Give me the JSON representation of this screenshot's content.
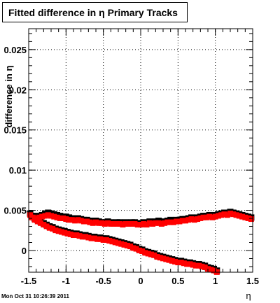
{
  "title": "Fitted difference in  η  Primary Tracks",
  "footer": "Mon Oct 31 10:26:39 2011",
  "chart_data": {
    "type": "scatter",
    "title": "Fitted difference in  η  Primary Tracks",
    "xlabel": "η",
    "ylabel": "difference in η",
    "xlim": [
      -1.5,
      1.5
    ],
    "ylim": [
      -0.0027,
      0.0276
    ],
    "grid": true,
    "x_ticks": [
      "-1.5",
      "-1",
      "-0.5",
      "0",
      "0.5",
      "1",
      "1.5"
    ],
    "y_ticks": [
      "0",
      "0.005",
      "0.01",
      "0.015",
      "0.02",
      "0.025"
    ],
    "colors": {
      "series_black": "#000000",
      "series_red": "#ff0000"
    },
    "series": [
      {
        "color": "#000000",
        "x": [
          -1.48,
          -1.44,
          -1.4,
          -1.36,
          -1.32,
          -1.28,
          -1.24,
          -1.2,
          -1.16,
          -1.12,
          -1.08,
          -1.04,
          -1.0,
          -0.96,
          -0.92,
          -0.88,
          -0.84,
          -0.8,
          -0.76,
          -0.72,
          -0.68,
          -0.64,
          -0.6,
          -0.56,
          -0.52,
          -0.48,
          -0.44,
          -0.4,
          -0.36,
          -0.32,
          -0.28,
          -0.24,
          -0.2,
          -0.16,
          -0.12,
          -0.08,
          -0.04,
          0.0,
          0.04,
          0.08,
          0.12,
          0.16,
          0.2,
          0.24,
          0.28,
          0.32,
          0.36,
          0.4,
          0.44,
          0.48,
          0.52,
          0.56,
          0.6,
          0.64,
          0.68,
          0.72,
          0.76,
          0.8,
          0.84,
          0.88,
          0.92,
          0.96,
          1.0,
          1.04,
          1.08,
          1.12,
          1.16,
          1.2,
          1.24,
          1.28,
          1.32,
          1.36,
          1.4,
          1.44,
          1.48
        ],
        "y": [
          0.0046,
          0.0043,
          0.0041,
          0.0043,
          0.0044,
          0.0046,
          0.0047,
          0.0046,
          0.0045,
          0.0044,
          0.0043,
          0.0042,
          0.0042,
          0.0041,
          0.004,
          0.0039,
          0.004,
          0.0039,
          0.0038,
          0.0038,
          0.0037,
          0.0036,
          0.0037,
          0.0036,
          0.0035,
          0.0035,
          0.0036,
          0.0035,
          0.0034,
          0.0035,
          0.0035,
          0.0034,
          0.0035,
          0.0034,
          0.0035,
          0.0035,
          0.0034,
          0.0033,
          0.0035,
          0.0034,
          0.0036,
          0.0035,
          0.0036,
          0.0037,
          0.0035,
          0.0036,
          0.0037,
          0.0038,
          0.0037,
          0.0038,
          0.0038,
          0.0039,
          0.0039,
          0.004,
          0.0041,
          0.004,
          0.0041,
          0.0042,
          0.0043,
          0.0043,
          0.0044,
          0.0043,
          0.0044,
          0.0045,
          0.0046,
          0.0047,
          0.0046,
          0.0048,
          0.0047,
          0.0046,
          0.0045,
          0.0044,
          0.0043,
          0.0042,
          0.0041
        ]
      },
      {
        "color": "#000000",
        "x": [
          -1.46,
          -1.42,
          -1.38,
          -1.34,
          -1.3,
          -1.26,
          -1.22,
          -1.18,
          -1.14,
          -1.1,
          -1.06,
          -1.02,
          -0.98,
          -0.94,
          -0.9,
          -0.86,
          -0.82,
          -0.78,
          -0.74,
          -0.7,
          -0.66,
          -0.62,
          -0.58,
          -0.54,
          -0.5,
          -0.46,
          -0.42,
          -0.38,
          -0.34,
          -0.3,
          -0.26,
          -0.22,
          -0.18,
          -0.14,
          -0.1,
          -0.06,
          -0.02,
          0.02,
          0.06,
          0.1,
          0.14,
          0.18,
          0.22,
          0.26,
          0.3,
          0.34,
          0.38,
          0.42,
          0.46,
          0.5,
          0.54,
          0.58,
          0.62,
          0.66,
          0.7,
          0.74,
          0.78,
          0.82,
          0.86,
          0.9,
          0.94,
          0.98,
          1.02
        ],
        "y": [
          0.0043,
          0.004,
          0.0038,
          0.0036,
          0.0034,
          0.0032,
          0.003,
          0.0029,
          0.0027,
          0.0026,
          0.0025,
          0.0024,
          0.0023,
          0.0022,
          0.0021,
          0.0021,
          0.002,
          0.0019,
          0.0019,
          0.0018,
          0.0017,
          0.0017,
          0.0016,
          0.0016,
          0.0015,
          0.0015,
          0.0014,
          0.0013,
          0.0012,
          0.0011,
          0.001,
          0.0009,
          0.0008,
          0.0007,
          0.0005,
          0.0004,
          0.0002,
          0.0001,
          -0.0001,
          -0.0002,
          -0.0003,
          -0.0004,
          -0.0006,
          -0.0007,
          -0.0008,
          -0.0009,
          -0.001,
          -0.0011,
          -0.0012,
          -0.0013,
          -0.0013,
          -0.0014,
          -0.0015,
          -0.0015,
          -0.0016,
          -0.0017,
          -0.0017,
          -0.0018,
          -0.0019,
          -0.0021,
          -0.0022,
          -0.0023,
          -0.0025
        ]
      },
      {
        "color": "#ff0000",
        "x": [
          -1.48,
          -1.44,
          -1.4,
          -1.36,
          -1.32,
          -1.28,
          -1.24,
          -1.2,
          -1.16,
          -1.12,
          -1.08,
          -1.04,
          -1.0,
          -0.96,
          -0.92,
          -0.88,
          -0.84,
          -0.8,
          -0.76,
          -0.72,
          -0.68,
          -0.64,
          -0.6,
          -0.56,
          -0.52,
          -0.48,
          -0.44,
          -0.4,
          -0.36,
          -0.32,
          -0.28,
          -0.24,
          -0.2,
          -0.16,
          -0.12,
          -0.08,
          -0.04,
          0.0,
          0.04,
          0.08,
          0.12,
          0.16,
          0.2,
          0.24,
          0.28,
          0.32,
          0.36,
          0.4,
          0.44,
          0.48,
          0.52,
          0.56,
          0.6,
          0.64,
          0.68,
          0.72,
          0.76,
          0.8,
          0.84,
          0.88,
          0.92,
          0.96,
          1.0,
          1.04,
          1.08,
          1.12,
          1.16,
          1.2,
          1.24,
          1.28,
          1.32,
          1.36,
          1.4,
          1.44,
          1.48
        ],
        "y": [
          0.0045,
          0.0042,
          0.004,
          0.0042,
          0.0043,
          0.0044,
          0.0045,
          0.0044,
          0.0043,
          0.0042,
          0.0041,
          0.0041,
          0.004,
          0.0039,
          0.0039,
          0.0038,
          0.0039,
          0.0038,
          0.0037,
          0.0037,
          0.0036,
          0.0035,
          0.0036,
          0.0035,
          0.0035,
          0.0034,
          0.0035,
          0.0034,
          0.0034,
          0.0034,
          0.0034,
          0.0033,
          0.0034,
          0.0034,
          0.0034,
          0.0034,
          0.0033,
          0.0033,
          0.0034,
          0.0033,
          0.0035,
          0.0034,
          0.0035,
          0.0035,
          0.0034,
          0.0035,
          0.0036,
          0.0036,
          0.0036,
          0.0037,
          0.0037,
          0.0038,
          0.0038,
          0.0039,
          0.004,
          0.0039,
          0.004,
          0.0041,
          0.0042,
          0.0042,
          0.0043,
          0.0042,
          0.0043,
          0.0044,
          0.0045,
          0.0046,
          0.0045,
          0.0047,
          0.0046,
          0.0045,
          0.0044,
          0.0043,
          0.0042,
          0.0041,
          0.004
        ]
      },
      {
        "color": "#ff0000",
        "x": [
          -1.46,
          -1.42,
          -1.38,
          -1.34,
          -1.3,
          -1.26,
          -1.22,
          -1.18,
          -1.14,
          -1.1,
          -1.06,
          -1.02,
          -0.98,
          -0.94,
          -0.9,
          -0.86,
          -0.82,
          -0.78,
          -0.74,
          -0.7,
          -0.66,
          -0.62,
          -0.58,
          -0.54,
          -0.5,
          -0.46,
          -0.42,
          -0.38,
          -0.34,
          -0.3,
          -0.26,
          -0.22,
          -0.18,
          -0.14,
          -0.1,
          -0.06,
          -0.02,
          0.02,
          0.06,
          0.1,
          0.14,
          0.18,
          0.22,
          0.26,
          0.3,
          0.34,
          0.38,
          0.42,
          0.46,
          0.5,
          0.54,
          0.58,
          0.62,
          0.66,
          0.7,
          0.74,
          0.78,
          0.82,
          0.86,
          0.9,
          0.94,
          0.98,
          1.02
        ],
        "y": [
          0.0042,
          0.0039,
          0.0037,
          0.0035,
          0.0033,
          0.0031,
          0.0029,
          0.0028,
          0.0026,
          0.0025,
          0.0024,
          0.0023,
          0.0022,
          0.0021,
          0.002,
          0.002,
          0.0019,
          0.0018,
          0.0018,
          0.0017,
          0.0016,
          0.0016,
          0.0015,
          0.0015,
          0.0014,
          0.0014,
          0.0013,
          0.0012,
          0.0011,
          0.001,
          0.0009,
          0.0008,
          0.0007,
          0.0006,
          0.0004,
          0.0003,
          0.0001,
          0.0,
          -0.0002,
          -0.0003,
          -0.0004,
          -0.0005,
          -0.0007,
          -0.0008,
          -0.0009,
          -0.001,
          -0.0011,
          -0.0012,
          -0.0013,
          -0.0014,
          -0.0014,
          -0.0015,
          -0.0016,
          -0.0016,
          -0.0017,
          -0.0018,
          -0.0018,
          -0.0019,
          -0.002,
          -0.0022,
          -0.0023,
          -0.0024,
          -0.0026
        ]
      }
    ]
  }
}
